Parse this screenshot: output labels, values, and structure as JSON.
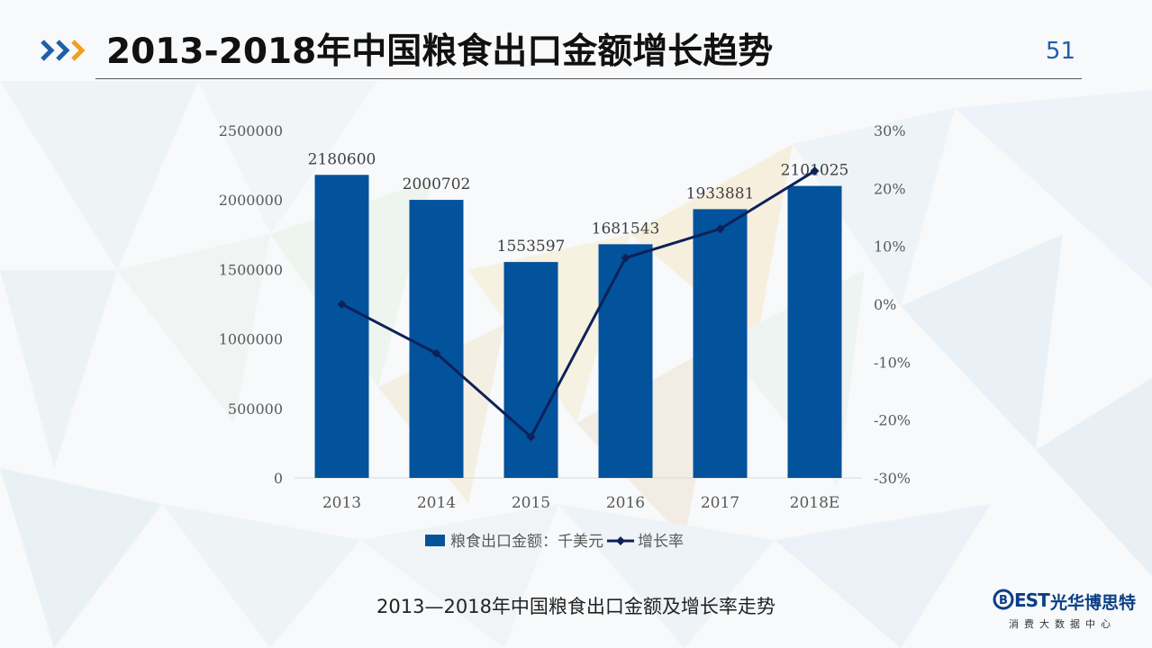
{
  "header": {
    "title": "2013-2018年中国粮食出口金额增长趋势",
    "page_number": "51"
  },
  "caption": "2013—2018年中国粮食出口金额及增长率走势",
  "logo": {
    "mark": "B",
    "est": "EST",
    "name_cn": "光华博思特",
    "subtitle": "消费大数据中心"
  },
  "colors": {
    "bar": "#02529c",
    "line": "#0e2159",
    "axis_text": "#595959",
    "logo": "#0a3e86"
  },
  "icons": {
    "header": "triple-chevron-right-icon",
    "logo": "best-logo-icon"
  },
  "chart_data": {
    "type": "bar",
    "categories": [
      "2013",
      "2014",
      "2015",
      "2016",
      "2017",
      "2018E"
    ],
    "series": [
      {
        "name": "粮食出口金额：千美元",
        "type": "bar",
        "axis": "left",
        "values": [
          2180600,
          2000702,
          1553597,
          1681543,
          1933881,
          2101025
        ],
        "labels": [
          "2180600",
          "2000702",
          "1553597",
          "1681543",
          "1933881",
          "2101025"
        ]
      },
      {
        "name": "增长率",
        "type": "line",
        "axis": "right",
        "values": [
          0.0,
          -8.5,
          -22.9,
          8.0,
          13.0,
          23.0
        ]
      }
    ],
    "y_left": {
      "ylim": [
        0,
        2500000
      ],
      "ticks": [
        0,
        500000,
        1000000,
        1500000,
        2000000,
        2500000
      ],
      "tick_labels": [
        "0",
        "500000",
        "1000000",
        "1500000",
        "2000000",
        "2500000"
      ]
    },
    "y_right": {
      "ylim": [
        -30,
        30
      ],
      "ticks": [
        -30,
        -20,
        -10,
        0,
        10,
        20,
        30
      ],
      "tick_labels": [
        "-30%",
        "-20%",
        "-10%",
        "0%",
        "10%",
        "20%",
        "30%"
      ]
    },
    "grid": false,
    "legend": "bottom"
  }
}
